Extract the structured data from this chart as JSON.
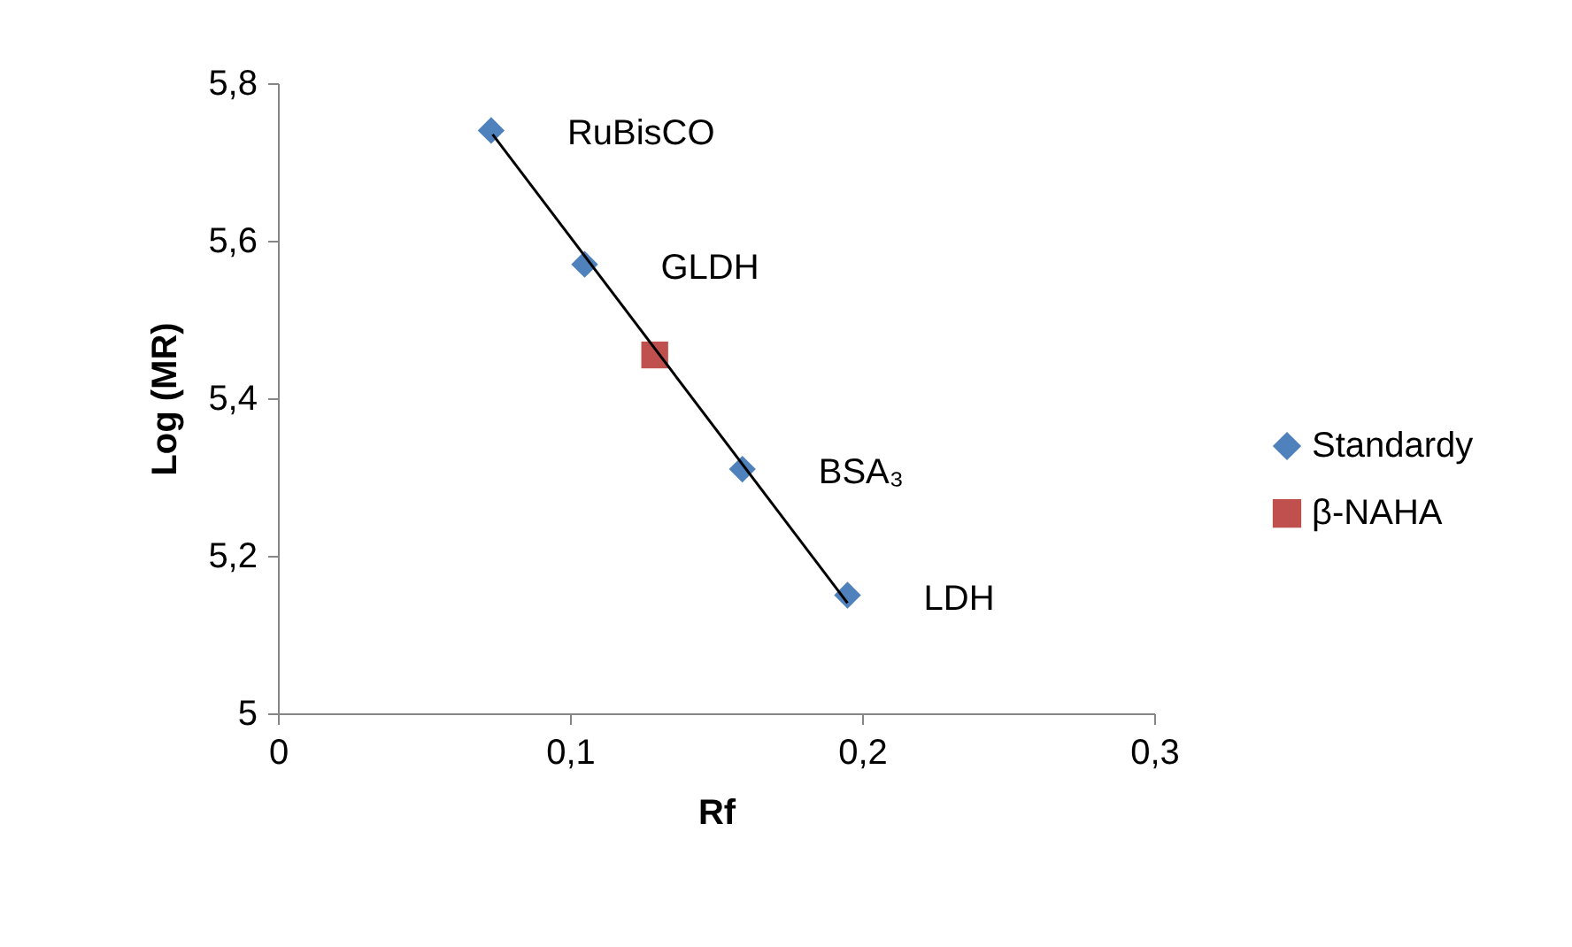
{
  "chart_data": {
    "type": "scatter",
    "xlabel": "Rf",
    "ylabel": "Log (MR)",
    "xlim": [
      0,
      0.3
    ],
    "xticks": [
      0,
      {
        "value": 0.1,
        "label": "0,1"
      },
      {
        "value": 0.2,
        "label": "0,2"
      },
      {
        "value": 0.3,
        "label": "0,3"
      }
    ],
    "ylim": [
      5,
      5.8
    ],
    "yticks": [
      5,
      {
        "value": 5.2,
        "label": "5,2"
      },
      {
        "value": 5.4,
        "label": "5,4"
      },
      {
        "value": 5.6,
        "label": "5,6"
      },
      {
        "value": 5.8,
        "label": "5,8"
      }
    ],
    "grid": false,
    "legend": "right",
    "series": [
      {
        "name": "Standardy",
        "color": "#4f81bd",
        "marker": "diamond",
        "x": [
          0.073,
          0.105,
          0.159,
          0.195
        ],
        "values": [
          5.74,
          5.57,
          5.31,
          5.15
        ]
      },
      {
        "name": "β-NAHA",
        "color": "#c0504d",
        "marker": "square",
        "x": [
          0.129
        ],
        "values": [
          5.455
        ]
      },
      {
        "type": "line",
        "color": "#000000",
        "line_style": "solid",
        "marker": "none",
        "x": [
          0.0735,
          0.195
        ],
        "values": [
          5.735,
          5.14
        ]
      }
    ],
    "annotations": [
      {
        "text": "RuBisCO",
        "x": 0.073,
        "y": 5.74
      },
      {
        "text": "GLDH",
        "x": 0.105,
        "y": 5.57
      },
      {
        "text": "BSA₃",
        "x": 0.159,
        "y": 5.31
      },
      {
        "text": "LDH",
        "x": 0.195,
        "y": 5.15
      }
    ]
  }
}
